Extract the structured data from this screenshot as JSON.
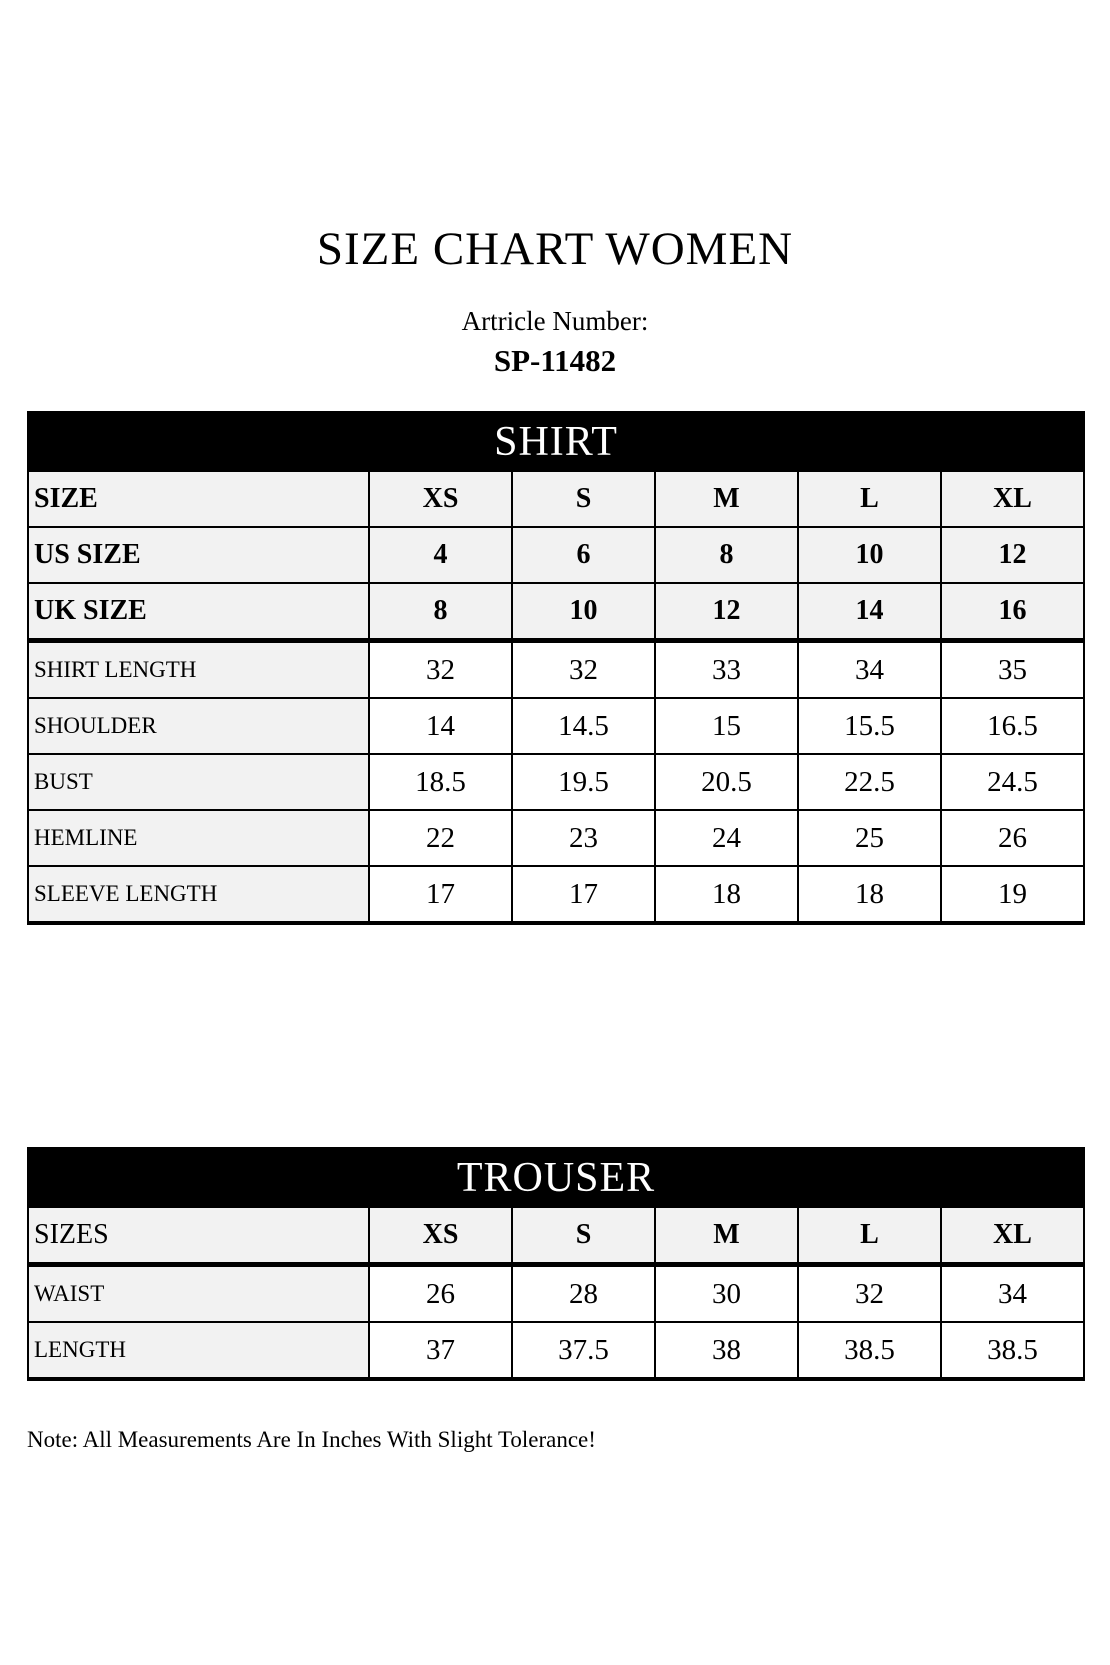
{
  "page": {
    "title": "SIZE CHART WOMEN",
    "article_label": "Artricle Number:",
    "article_number": "SP-11482",
    "note": "Note: All Measurements Are In Inches With Slight Tolerance!"
  },
  "colors": {
    "header_bg": "#000000",
    "header_text": "#ffffff",
    "shaded_cell_bg": "#f2f2f2",
    "measure_cell_bg": "#ffffff",
    "border": "#000000"
  },
  "tables": [
    {
      "id": "shirt-table",
      "title": "SHIRT",
      "rows": [
        {
          "label": "SIZE",
          "kind": "size",
          "label_bold": true,
          "values": [
            "XS",
            "S",
            "M",
            "L",
            "XL"
          ]
        },
        {
          "label": "US SIZE",
          "kind": "size",
          "label_bold": true,
          "values": [
            "4",
            "6",
            "8",
            "10",
            "12"
          ]
        },
        {
          "label": "UK SIZE",
          "kind": "size",
          "label_bold": true,
          "thick_bottom": true,
          "values": [
            "8",
            "10",
            "12",
            "14",
            "16"
          ]
        },
        {
          "label": "SHIRT LENGTH",
          "kind": "measure",
          "values": [
            "32",
            "32",
            "33",
            "34",
            "35"
          ]
        },
        {
          "label": "SHOULDER",
          "kind": "measure",
          "values": [
            "14",
            "14.5",
            "15",
            "15.5",
            "16.5"
          ]
        },
        {
          "label": "BUST",
          "kind": "measure",
          "values": [
            "18.5",
            "19.5",
            "20.5",
            "22.5",
            "24.5"
          ]
        },
        {
          "label": "HEMLINE",
          "kind": "measure",
          "values": [
            "22",
            "23",
            "24",
            "25",
            "26"
          ]
        },
        {
          "label": "SLEEVE LENGTH",
          "kind": "measure",
          "values": [
            "17",
            "17",
            "18",
            "18",
            "19"
          ]
        }
      ]
    },
    {
      "id": "trouser-table",
      "title": "TROUSER",
      "rows": [
        {
          "label": "SIZES",
          "kind": "size",
          "label_bold": false,
          "thick_bottom": true,
          "values": [
            "XS",
            "S",
            "M",
            "L",
            "XL"
          ]
        },
        {
          "label": "WAIST",
          "kind": "measure",
          "values": [
            "26",
            "28",
            "30",
            "32",
            "34"
          ]
        },
        {
          "label": "LENGTH",
          "kind": "measure",
          "values": [
            "37",
            "37.5",
            "38",
            "38.5",
            "38.5"
          ]
        }
      ]
    }
  ]
}
